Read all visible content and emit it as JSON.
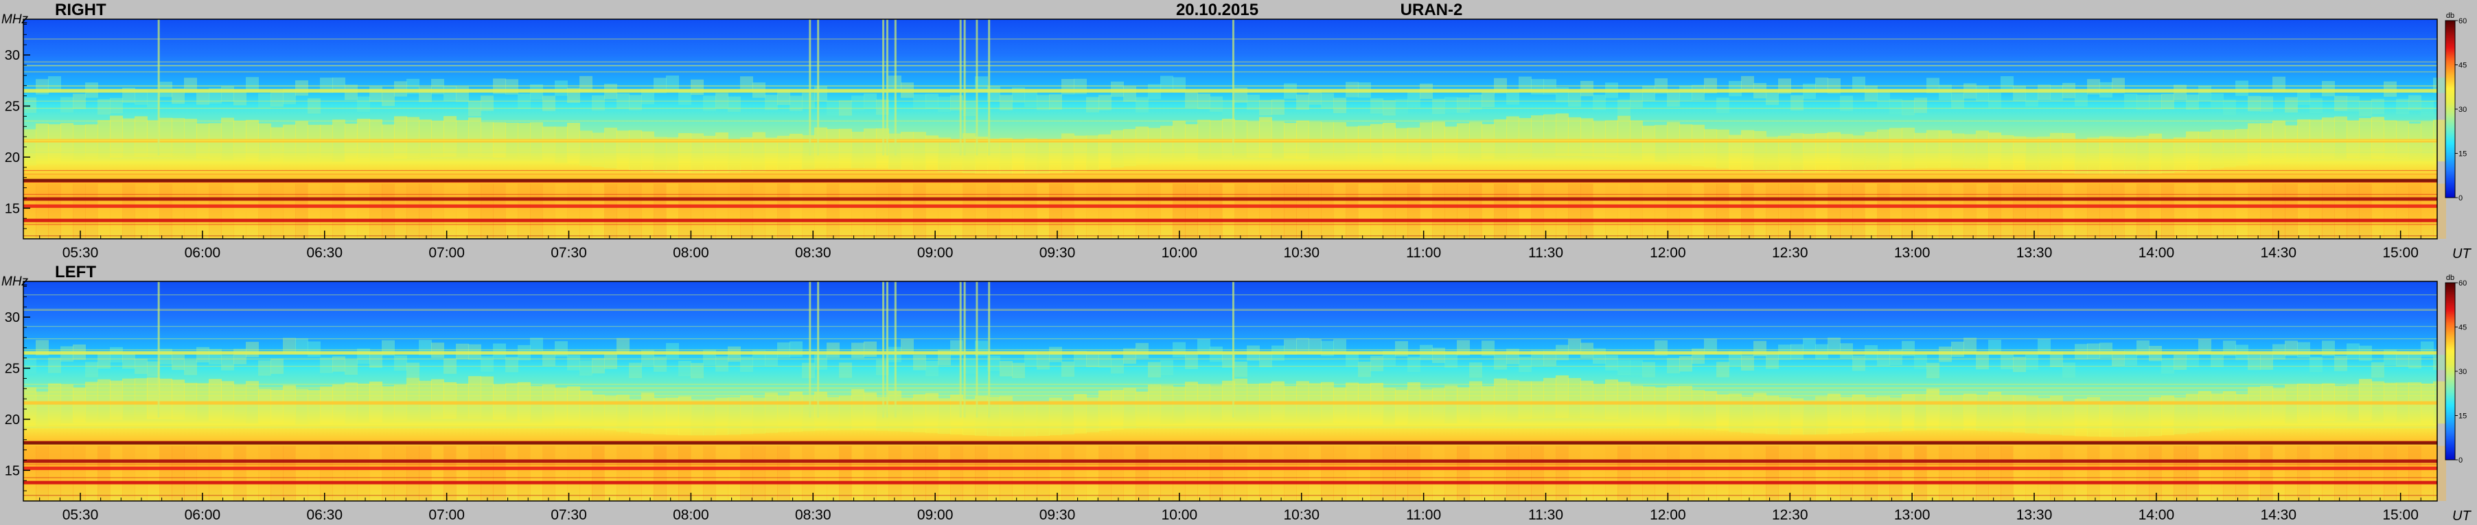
{
  "header": {
    "date": "20.10.2015",
    "instrument": "URAN-2"
  },
  "colors": {
    "background": "#c0c0c0",
    "text": "#000000",
    "frame": "#000000",
    "colormap": [
      "#0008c8",
      "#0a3cf0",
      "#1e78ff",
      "#1eb4ff",
      "#28e6ff",
      "#6ef0c8",
      "#b4f08c",
      "#e6f050",
      "#fff03c",
      "#ffb428",
      "#ff6e1e",
      "#e61414",
      "#a00a0a",
      "#500000"
    ]
  },
  "colorbar": {
    "unit": "db",
    "ticks": [
      "0",
      "15",
      "30",
      "45",
      "60"
    ]
  },
  "chart_data": [
    {
      "type": "heatmap",
      "title": "RIGHT",
      "ylabel": "MHz",
      "xlabel": "UT",
      "ylim": [
        12,
        33.5
      ],
      "y_ticks": [
        "15",
        "20",
        "25",
        "30"
      ],
      "x_ticks": [
        "05:30",
        "06:00",
        "06:30",
        "07:00",
        "07:30",
        "08:00",
        "08:30",
        "09:00",
        "09:30",
        "10:00",
        "10:30",
        "11:00",
        "11:30",
        "12:00",
        "12:30",
        "13:00",
        "13:30",
        "14:00",
        "14:30",
        "15:00"
      ],
      "color_scale": {
        "unit": "db",
        "min": 0,
        "max": 60
      },
      "bands_mhz": [
        {
          "freq": 13.8,
          "db": 52
        },
        {
          "freq": 15.2,
          "db": 50
        },
        {
          "freq": 15.9,
          "db": 55
        },
        {
          "freq": 17.7,
          "db": 58
        },
        {
          "freq": 21.6,
          "db": 40
        },
        {
          "freq": 26.5,
          "db": 32
        }
      ]
    },
    {
      "type": "heatmap",
      "title": "LEFT",
      "ylabel": "MHz",
      "xlabel": "UT",
      "ylim": [
        12,
        33.5
      ],
      "y_ticks": [
        "15",
        "20",
        "25",
        "30"
      ],
      "x_ticks": [
        "05:30",
        "06:00",
        "06:30",
        "07:00",
        "07:30",
        "08:00",
        "08:30",
        "09:00",
        "09:30",
        "10:00",
        "10:30",
        "11:00",
        "11:30",
        "12:00",
        "12:30",
        "13:00",
        "13:30",
        "14:00",
        "14:30",
        "15:00"
      ],
      "color_scale": {
        "unit": "db",
        "min": 0,
        "max": 60
      },
      "bands_mhz": [
        {
          "freq": 13.8,
          "db": 52
        },
        {
          "freq": 15.2,
          "db": 50
        },
        {
          "freq": 15.9,
          "db": 55
        },
        {
          "freq": 17.7,
          "db": 58
        },
        {
          "freq": 21.6,
          "db": 40
        },
        {
          "freq": 26.5,
          "db": 32
        }
      ]
    }
  ]
}
